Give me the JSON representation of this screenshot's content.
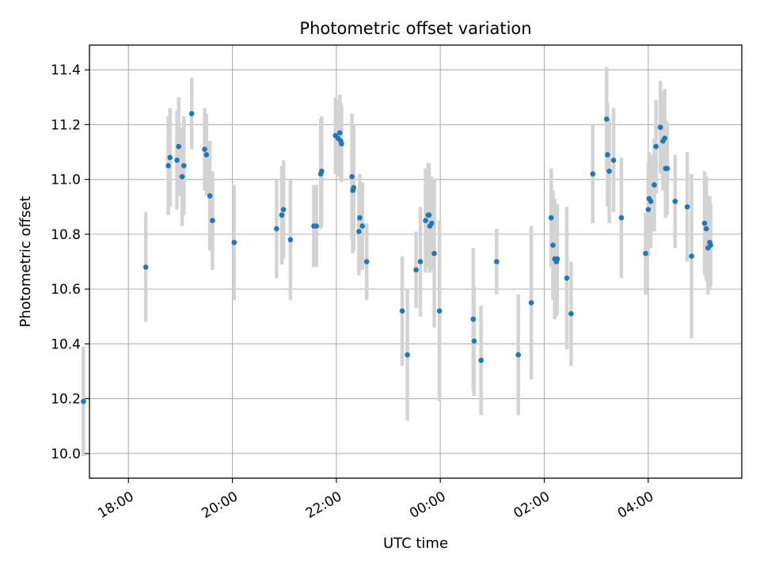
{
  "chart_data": {
    "type": "scatter",
    "title": "Photometric offset variation",
    "xlabel": "UTC time",
    "ylabel": "Photometric offset",
    "x_axis": {
      "kind": "time",
      "range": [
        "17:15",
        "05:48"
      ],
      "ticks": [
        "18:00",
        "20:00",
        "22:00",
        "00:00",
        "02:00",
        "04:00"
      ]
    },
    "y_axis": {
      "range": [
        9.91,
        11.49
      ],
      "ticks": [
        "10.0",
        "10.2",
        "10.4",
        "10.6",
        "10.8",
        "11.0",
        "11.2",
        "11.4"
      ]
    },
    "grid": true,
    "marker_color": "#1f77b4",
    "errorbar_color": "#d3d3d3",
    "series": [
      {
        "x": [
          "17:08",
          "18:20",
          "18:46",
          "18:48",
          "18:56",
          "18:58",
          "19:02",
          "19:04",
          "19:13",
          "19:28",
          "19:30",
          "19:34",
          "19:37",
          "20:02",
          "20:51",
          "20:57",
          "20:59",
          "21:07",
          "21:34",
          "21:37",
          "21:42",
          "21:43",
          "21:59",
          "22:02",
          "22:04",
          "22:05",
          "22:06",
          "22:18",
          "22:19",
          "22:20",
          "22:26",
          "22:27",
          "22:30",
          "22:35",
          "23:16",
          "23:22",
          "23:32",
          "23:37",
          "23:43",
          "23:46",
          "23:47",
          "23:48",
          "23:50",
          "23:53",
          "23:59",
          "00:38",
          "00:39",
          "00:47",
          "01:05",
          "01:30",
          "01:45",
          "02:08",
          "02:10",
          "02:12",
          "02:14",
          "02:15",
          "02:26",
          "02:31",
          "02:56",
          "03:12",
          "03:13",
          "03:15",
          "03:20",
          "03:29",
          "03:57",
          "04:00",
          "04:01",
          "04:03",
          "04:07",
          "04:09",
          "04:14",
          "04:17",
          "04:19",
          "04:20",
          "04:22",
          "04:31",
          "04:45",
          "04:50",
          "05:05",
          "05:07",
          "05:09",
          "05:11",
          "05:12"
        ],
        "y": [
          10.19,
          10.68,
          11.05,
          11.08,
          11.07,
          11.12,
          11.01,
          11.05,
          11.24,
          11.11,
          11.09,
          10.94,
          10.85,
          10.77,
          10.82,
          10.87,
          10.89,
          10.78,
          10.83,
          10.83,
          11.02,
          11.03,
          11.16,
          11.15,
          11.17,
          11.14,
          11.13,
          11.01,
          10.96,
          10.97,
          10.81,
          10.86,
          10.83,
          10.7,
          10.52,
          10.36,
          10.67,
          10.7,
          10.85,
          10.87,
          10.87,
          10.83,
          10.84,
          10.73,
          10.52,
          10.49,
          10.41,
          10.34,
          10.7,
          10.36,
          10.55,
          10.86,
          10.76,
          10.71,
          10.7,
          10.71,
          10.64,
          10.51,
          11.02,
          11.22,
          11.09,
          11.03,
          11.07,
          10.86,
          10.73,
          10.89,
          10.93,
          10.92,
          10.98,
          11.12,
          11.19,
          11.14,
          11.15,
          11.04,
          11.04,
          10.92,
          10.9,
          10.72,
          10.84,
          10.82,
          10.75,
          10.77,
          10.76
        ],
        "yerr": [
          0.2,
          0.2,
          0.18,
          0.18,
          0.18,
          0.18,
          0.18,
          0.18,
          0.13,
          0.15,
          0.15,
          0.2,
          0.18,
          0.21,
          0.18,
          0.18,
          0.18,
          0.22,
          0.15,
          0.15,
          0.2,
          0.2,
          0.14,
          0.14,
          0.14,
          0.14,
          0.14,
          0.23,
          0.23,
          0.23,
          0.16,
          0.16,
          0.16,
          0.14,
          0.2,
          0.24,
          0.14,
          0.2,
          0.19,
          0.19,
          0.19,
          0.17,
          0.17,
          0.27,
          0.33,
          0.26,
          0.2,
          0.2,
          0.12,
          0.22,
          0.28,
          0.18,
          0.2,
          0.22,
          0.2,
          0.2,
          0.26,
          0.19,
          0.18,
          0.19,
          0.19,
          0.19,
          0.19,
          0.22,
          0.15,
          0.17,
          0.17,
          0.17,
          0.17,
          0.17,
          0.17,
          0.18,
          0.18,
          0.18,
          0.17,
          0.17,
          0.2,
          0.3,
          0.19,
          0.19,
          0.17,
          0.17,
          0.15
        ]
      }
    ]
  }
}
